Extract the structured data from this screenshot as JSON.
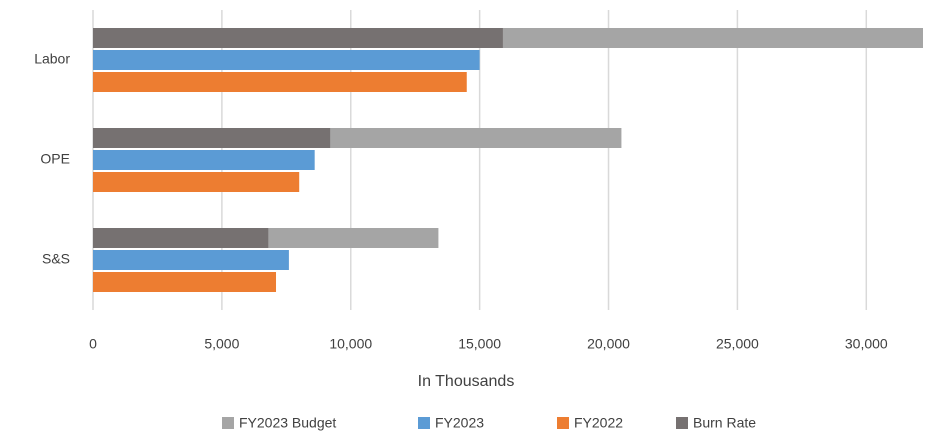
{
  "chart_data": {
    "type": "hbar",
    "x_label": "In Thousands",
    "categories": [
      "Labor",
      "OPE",
      "S&S"
    ],
    "series": [
      {
        "name": "FY2023 Budget",
        "color": "#a5a5a5",
        "values": [
          32200,
          20500,
          13400
        ]
      },
      {
        "name": "FY2023",
        "color": "#5b9bd5",
        "values": [
          15000,
          8600,
          7600
        ]
      },
      {
        "name": "FY2022",
        "color": "#ed7d31",
        "values": [
          14500,
          8000,
          7100
        ]
      },
      {
        "name": "Burn Rate",
        "color": "#767171",
        "values": [
          15900,
          9200,
          6800
        ]
      }
    ],
    "xlim": [
      0,
      32200
    ],
    "xticks": [
      0,
      {
        "value": 5000,
        "label": "5,000"
      },
      {
        "value": 10000,
        "label": "10,000"
      },
      {
        "value": 15000,
        "label": "15,000"
      },
      {
        "value": 20000,
        "label": "20,000"
      },
      {
        "value": 25000,
        "label": "25,000"
      },
      {
        "value": 30000,
        "label": "30,000"
      }
    ],
    "grid": true
  }
}
